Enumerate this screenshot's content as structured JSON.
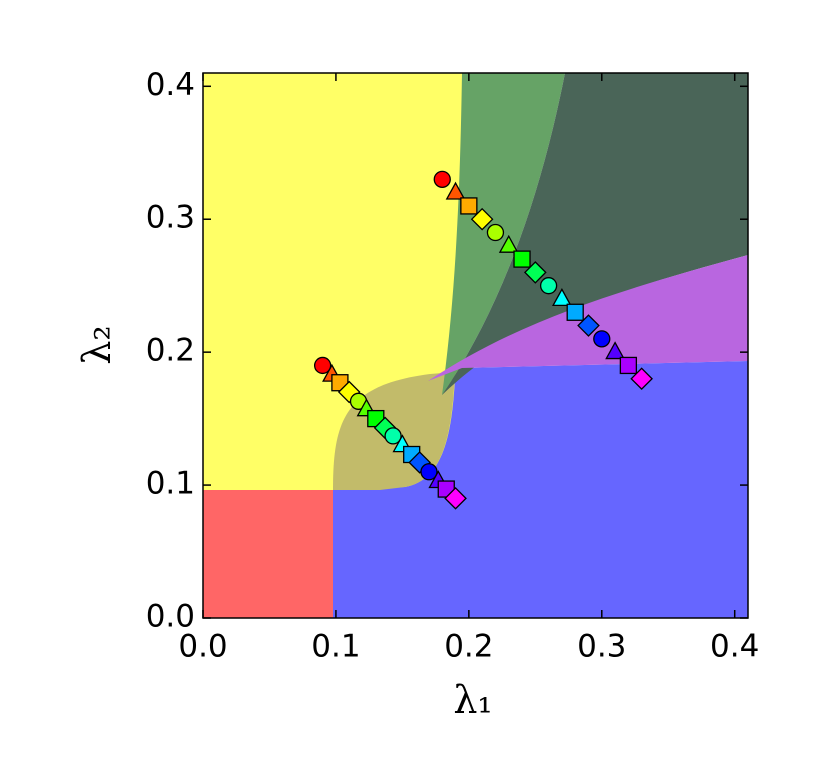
{
  "chart_data": {
    "type": "scatter",
    "x_label": "λ₁",
    "y_label": "λ₂",
    "xlim": [
      0,
      0.41
    ],
    "ylim": [
      0,
      0.41
    ],
    "xticks": [
      {
        "value": 0,
        "label": "0.0"
      },
      0.1,
      0.2,
      0.3,
      0.4
    ],
    "yticks": [
      {
        "value": 0,
        "label": "0.0"
      },
      0.1,
      0.2,
      0.3,
      0.4
    ],
    "grid": false,
    "series": [
      {
        "x": [
          0.09,
          0.097,
          0.103,
          0.11,
          0.117,
          0.123,
          0.13,
          0.137,
          0.143,
          0.15,
          0.157,
          0.163,
          0.17,
          0.177,
          0.183,
          0.19
        ],
        "values": [
          0.19,
          0.183,
          0.177,
          0.17,
          0.163,
          0.157,
          0.15,
          0.143,
          0.137,
          0.13,
          0.123,
          0.117,
          0.11,
          0.103,
          0.097,
          0.09
        ],
        "colors": [
          "#ff0000",
          "#ff5500",
          "#ffaa00",
          "#ffff00",
          "#aaff00",
          "#55ff00",
          "#00ff00",
          "#00ff55",
          "#00ffaa",
          "#00ffff",
          "#00aaff",
          "#0055ff",
          "#0000ff",
          "#5500ff",
          "#aa00ff",
          "#ff00ff"
        ],
        "markers": [
          "o",
          "^",
          "s",
          "D",
          "o",
          "^",
          "s",
          "D",
          "o",
          "^",
          "s",
          "D",
          "o",
          "^",
          "s",
          "D"
        ]
      },
      {
        "x": [
          0.18,
          0.19,
          0.2,
          0.21,
          0.22,
          0.23,
          0.24,
          0.25,
          0.26,
          0.27,
          0.28,
          0.29,
          0.3,
          0.31,
          0.32,
          0.33
        ],
        "values": [
          0.33,
          0.32,
          0.31,
          0.3,
          0.29,
          0.28,
          0.27,
          0.26,
          0.25,
          0.24,
          0.23,
          0.22,
          0.21,
          0.2,
          0.19,
          0.18
        ],
        "colors": [
          "#ff0000",
          "#ff5500",
          "#ffaa00",
          "#ffff00",
          "#aaff00",
          "#55ff00",
          "#00ff00",
          "#00ff55",
          "#00ffaa",
          "#00ffff",
          "#00aaff",
          "#0055ff",
          "#0000ff",
          "#5500ff",
          "#aa00ff",
          "#ff00ff"
        ],
        "markers": [
          "o",
          "^",
          "s",
          "D",
          "o",
          "^",
          "s",
          "D",
          "o",
          "^",
          "s",
          "D",
          "o",
          "^",
          "s",
          "D"
        ]
      }
    ]
  }
}
